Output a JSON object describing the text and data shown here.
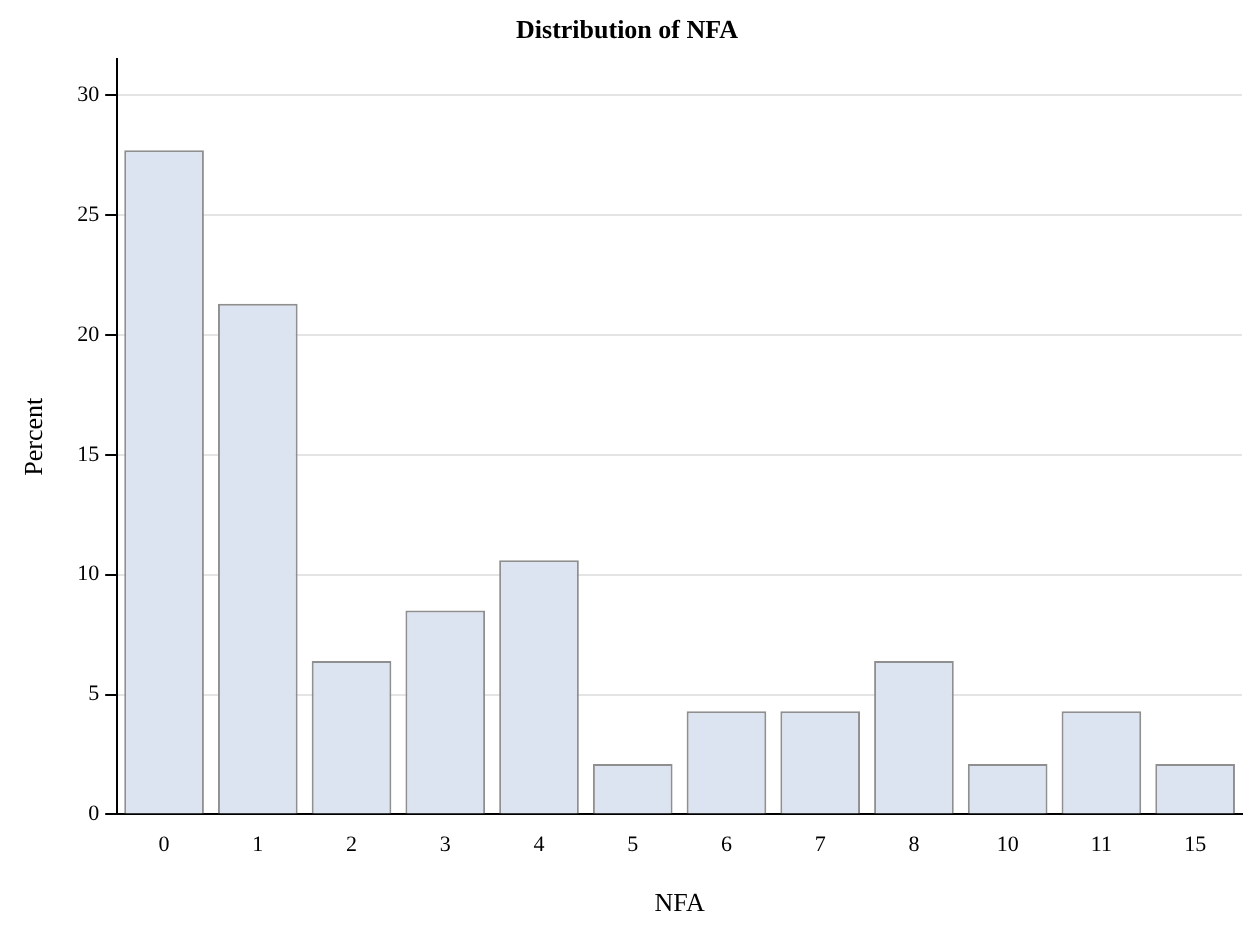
{
  "chart_data": {
    "type": "bar",
    "title": "Distribution of NFA",
    "xlabel": "NFA",
    "ylabel": "Percent",
    "categories": [
      "0",
      "1",
      "2",
      "3",
      "4",
      "5",
      "6",
      "7",
      "8",
      "10",
      "11",
      "15"
    ],
    "values": [
      27.7,
      21.3,
      6.4,
      8.5,
      10.6,
      2.1,
      4.3,
      4.3,
      6.4,
      2.1,
      4.3,
      2.1
    ],
    "color": "#dbe4f0",
    "ylim": [
      0,
      31.5
    ],
    "yticks": [
      0,
      5,
      10,
      15,
      20,
      25,
      30
    ],
    "grid": "y",
    "legend": false
  }
}
